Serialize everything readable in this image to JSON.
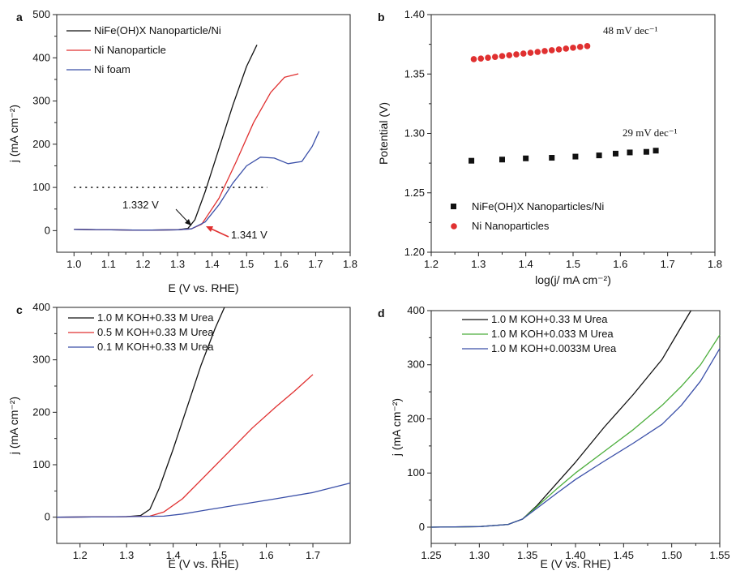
{
  "colors": {
    "black": "#111111",
    "red": "#e03030",
    "blue": "#3a4fa8",
    "green": "#4cae3c"
  },
  "chart_data": [
    {
      "id": "a",
      "type": "line",
      "panel_label": "a",
      "xlabel": "E (V vs. RHE)",
      "ylabel": "j (mA cm⁻²)",
      "xlim": [
        0.95,
        1.8
      ],
      "ylim": [
        -50,
        500
      ],
      "xticks": [
        1.0,
        1.1,
        1.2,
        1.3,
        1.4,
        1.5,
        1.6,
        1.7,
        1.8
      ],
      "xtick_labels": [
        "1.0",
        "1.1",
        "1.2",
        "1.3",
        "1.4",
        "1.5",
        "1.6",
        "1.7",
        "1.8"
      ],
      "yticks": [
        0,
        100,
        200,
        300,
        400,
        500
      ],
      "ytick_labels": [
        "0",
        "100",
        "200",
        "300",
        "400",
        "500"
      ],
      "legend_position": "top-left",
      "reference_line": {
        "y": 100,
        "x_range": [
          1.0,
          1.56
        ],
        "style": "dotted"
      },
      "series": [
        {
          "name": "NiFe(OH)X Nanoparticle/Ni",
          "color": "#111111",
          "x": [
            1.0,
            1.2,
            1.3,
            1.33,
            1.35,
            1.38,
            1.42,
            1.46,
            1.5,
            1.53
          ],
          "y": [
            3,
            1,
            2,
            5,
            25,
            90,
            190,
            290,
            380,
            430
          ]
        },
        {
          "name": "Ni Nanoparticle",
          "color": "#e03030",
          "x": [
            1.0,
            1.2,
            1.3,
            1.34,
            1.37,
            1.42,
            1.47,
            1.52,
            1.57,
            1.61,
            1.65
          ],
          "y": [
            3,
            1,
            2,
            4,
            15,
            75,
            160,
            250,
            320,
            355,
            363
          ]
        },
        {
          "name": "Ni foam",
          "color": "#3a4fa8",
          "x": [
            1.0,
            1.2,
            1.3,
            1.34,
            1.38,
            1.42,
            1.46,
            1.5,
            1.54,
            1.58,
            1.62,
            1.66,
            1.69,
            1.71
          ],
          "y": [
            3,
            1,
            2,
            4,
            20,
            60,
            110,
            150,
            170,
            168,
            155,
            160,
            195,
            230
          ]
        }
      ],
      "annotations": [
        {
          "text": "1.332 V",
          "color": "#111111"
        },
        {
          "text": "1.341 V",
          "color": "#e03030"
        }
      ]
    },
    {
      "id": "b",
      "type": "scatter",
      "panel_label": "b",
      "xlabel": "log(j/ mA cm⁻²)",
      "ylabel": "Potential (V)",
      "xlim": [
        1.2,
        1.8
      ],
      "ylim": [
        1.2,
        1.4
      ],
      "xticks": [
        1.2,
        1.3,
        1.4,
        1.5,
        1.6,
        1.7,
        1.8
      ],
      "xtick_labels": [
        "1.2",
        "1.3",
        "1.4",
        "1.5",
        "1.6",
        "1.7",
        "1.8"
      ],
      "yticks": [
        1.2,
        1.25,
        1.3,
        1.35,
        1.4
      ],
      "ytick_labels": [
        "1.20",
        "1.25",
        "1.30",
        "1.35",
        "1.40"
      ],
      "legend_position": "bottom-left",
      "series": [
        {
          "name": "NiFe(OH)X Nanoparticles/Ni",
          "color": "#111111",
          "marker": "square",
          "x": [
            1.285,
            1.35,
            1.4,
            1.455,
            1.505,
            1.555,
            1.59,
            1.62,
            1.655,
            1.675
          ],
          "y": [
            1.277,
            1.278,
            1.279,
            1.2795,
            1.2805,
            1.2815,
            1.283,
            1.284,
            1.2845,
            1.2855
          ]
        },
        {
          "name": "Ni Nanoparticles",
          "color": "#e03030",
          "marker": "circle",
          "x": [
            1.29,
            1.305,
            1.32,
            1.335,
            1.35,
            1.365,
            1.38,
            1.395,
            1.41,
            1.425,
            1.44,
            1.455,
            1.47,
            1.485,
            1.5,
            1.515,
            1.53
          ],
          "y": [
            1.3625,
            1.363,
            1.3637,
            1.3644,
            1.3651,
            1.3658,
            1.3665,
            1.3672,
            1.3679,
            1.3686,
            1.3693,
            1.37,
            1.3707,
            1.3714,
            1.3721,
            1.3728,
            1.3735
          ]
        }
      ],
      "annotations": [
        {
          "text": "48 mV dec⁻¹",
          "color": "#111111"
        },
        {
          "text": "29 mV dec⁻¹",
          "color": "#111111"
        }
      ]
    },
    {
      "id": "c",
      "type": "line",
      "panel_label": "c",
      "xlabel": "E (V vs. RHE)",
      "ylabel": "j (mA cm⁻²)",
      "xlim": [
        1.15,
        1.78
      ],
      "ylim": [
        -50,
        400
      ],
      "xticks": [
        1.2,
        1.3,
        1.4,
        1.5,
        1.6,
        1.7
      ],
      "xtick_labels": [
        "1.2",
        "1.3",
        "1.4",
        "1.5",
        "1.6",
        "1.7"
      ],
      "yticks": [
        0,
        100,
        200,
        300,
        400
      ],
      "ytick_labels": [
        "0",
        "100",
        "200",
        "300",
        "400"
      ],
      "legend_position": "top-left",
      "series": [
        {
          "name": "1.0 M KOH+0.33 M Urea",
          "color": "#111111",
          "x": [
            1.15,
            1.3,
            1.33,
            1.35,
            1.37,
            1.4,
            1.43,
            1.46,
            1.49,
            1.51
          ],
          "y": [
            0,
            1,
            3,
            15,
            55,
            130,
            210,
            290,
            360,
            400
          ]
        },
        {
          "name": "0.5 M KOH+0.33 M Urea",
          "color": "#e03030",
          "x": [
            1.15,
            1.3,
            1.35,
            1.38,
            1.42,
            1.47,
            1.52,
            1.57,
            1.62,
            1.66,
            1.7
          ],
          "y": [
            0,
            1,
            2,
            10,
            35,
            80,
            125,
            170,
            210,
            240,
            272
          ]
        },
        {
          "name": "0.1 M KOH+0.33 M Urea",
          "color": "#3a4fa8",
          "x": [
            1.15,
            1.3,
            1.38,
            1.42,
            1.48,
            1.55,
            1.62,
            1.7,
            1.78
          ],
          "y": [
            0,
            1,
            2,
            6,
            15,
            25,
            35,
            47,
            65
          ]
        }
      ]
    },
    {
      "id": "d",
      "type": "line",
      "panel_label": "d",
      "xlabel": "E (V vs. RHE)",
      "ylabel": "j (mA cm⁻²)",
      "xlim": [
        1.25,
        1.55
      ],
      "ylim": [
        -30,
        400
      ],
      "xticks": [
        1.25,
        1.3,
        1.35,
        1.4,
        1.45,
        1.5,
        1.55
      ],
      "xtick_labels": [
        "1.25",
        "1.30",
        "1.35",
        "1.40",
        "1.45",
        "1.50",
        "1.55"
      ],
      "yticks": [
        0,
        100,
        200,
        300,
        400
      ],
      "ytick_labels": [
        "0",
        "100",
        "200",
        "300",
        "400"
      ],
      "legend_position": "top-left",
      "series": [
        {
          "name": "1.0 M KOH+0.33 M Urea",
          "color": "#111111",
          "x": [
            1.25,
            1.3,
            1.33,
            1.345,
            1.36,
            1.38,
            1.4,
            1.43,
            1.46,
            1.49,
            1.51,
            1.52
          ],
          "y": [
            0,
            1,
            5,
            15,
            40,
            80,
            120,
            185,
            245,
            310,
            370,
            400
          ]
        },
        {
          "name": "1.0 M KOH+0.033 M Urea",
          "color": "#4cae3c",
          "x": [
            1.25,
            1.3,
            1.33,
            1.345,
            1.36,
            1.38,
            1.4,
            1.43,
            1.46,
            1.49,
            1.51,
            1.53,
            1.55
          ],
          "y": [
            0,
            1,
            5,
            15,
            38,
            70,
            100,
            140,
            180,
            225,
            260,
            300,
            355
          ]
        },
        {
          "name": "1.0 M KOH+0.0033M Urea",
          "color": "#3a4fa8",
          "x": [
            1.25,
            1.3,
            1.33,
            1.345,
            1.36,
            1.38,
            1.4,
            1.43,
            1.46,
            1.49,
            1.51,
            1.53,
            1.55
          ],
          "y": [
            0,
            1,
            5,
            15,
            35,
            62,
            88,
            122,
            155,
            190,
            225,
            270,
            330
          ]
        }
      ]
    }
  ]
}
